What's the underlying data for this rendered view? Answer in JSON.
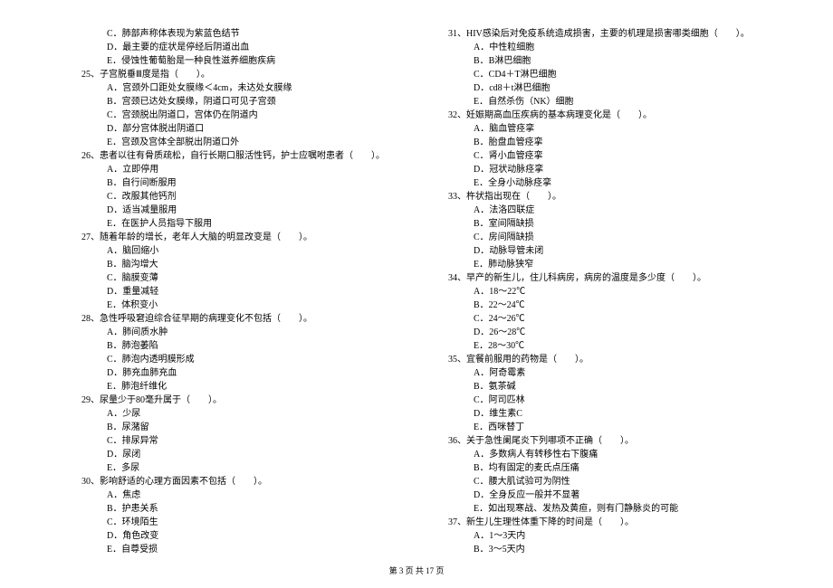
{
  "left": [
    {
      "type": "option",
      "text": "C．肺部声称体表现为紫蓝色结节"
    },
    {
      "type": "option",
      "text": "D．最主要的症状是停经后阴道出血"
    },
    {
      "type": "option",
      "text": "E．侵蚀性葡萄胎是一种良性滋养细胞疾病"
    },
    {
      "type": "question",
      "text": "25、子宫脱垂Ⅲ度是指（　　）。"
    },
    {
      "type": "option",
      "text": "A．宫颈外口距处女膜缘＜4cm，未达处女膜缘"
    },
    {
      "type": "option",
      "text": "B．宫颈已达处女膜缘，阴道口可见子宫颈"
    },
    {
      "type": "option",
      "text": "C．宫颈脱出阴道口，宫体仍在阴道内"
    },
    {
      "type": "option",
      "text": "D．部分宫体脱出阴道口"
    },
    {
      "type": "option",
      "text": "E．宫颈及宫体全部脱出阴道口外"
    },
    {
      "type": "question",
      "text": "26、患者以往有骨质疏松，自行长期口服活性钙，护士应嘱咐患者（　　）。"
    },
    {
      "type": "option",
      "text": "A．立即停用"
    },
    {
      "type": "option",
      "text": "B．自行间断服用"
    },
    {
      "type": "option",
      "text": "C．改服其他钙剂"
    },
    {
      "type": "option",
      "text": "D．适当减量服用"
    },
    {
      "type": "option",
      "text": "E．在医护人员指导下服用"
    },
    {
      "type": "question",
      "text": "27、随着年龄的增长，老年人大脑的明显改变是（　　）。"
    },
    {
      "type": "option",
      "text": "A．脑回缩小"
    },
    {
      "type": "option",
      "text": "B．脑沟增大"
    },
    {
      "type": "option",
      "text": "C．脑膜变薄"
    },
    {
      "type": "option",
      "text": "D．重量减轻"
    },
    {
      "type": "option",
      "text": "E．体积变小"
    },
    {
      "type": "question",
      "text": "28、急性呼吸窘迫综合征早期的病理变化不包括（　　）。"
    },
    {
      "type": "option",
      "text": "A．肺间质水肿"
    },
    {
      "type": "option",
      "text": "B．肺泡萎陷"
    },
    {
      "type": "option",
      "text": "C．肺泡内透明膜形成"
    },
    {
      "type": "option",
      "text": "D．肺充血肺充血"
    },
    {
      "type": "option",
      "text": "E．肺泡纤维化"
    },
    {
      "type": "question",
      "text": "29、尿量少于80毫升属于（　　）。"
    },
    {
      "type": "option",
      "text": "A．少尿"
    },
    {
      "type": "option",
      "text": "B．尿潴留"
    },
    {
      "type": "option",
      "text": "C．排尿异常"
    },
    {
      "type": "option",
      "text": "D．尿闭"
    },
    {
      "type": "option",
      "text": "E．多尿"
    },
    {
      "type": "question",
      "text": "30、影响舒适的心理方面因素不包括（　　）。"
    },
    {
      "type": "option",
      "text": "A．焦虑"
    },
    {
      "type": "option",
      "text": "B．护患关系"
    },
    {
      "type": "option",
      "text": "C．环境陌生"
    },
    {
      "type": "option",
      "text": "D．角色改变"
    },
    {
      "type": "option",
      "text": "E．自尊受损"
    }
  ],
  "right": [
    {
      "type": "question",
      "text": "31、HIV感染后对免疫系统造成损害，主要的机理是损害哪类细胞（　　）。"
    },
    {
      "type": "option",
      "text": "A．中性粒细胞"
    },
    {
      "type": "option",
      "text": "B．B淋巴细胞"
    },
    {
      "type": "option",
      "text": "C．CD4＋T淋巴细胞"
    },
    {
      "type": "option",
      "text": "D．cd8＋t淋巴细胞"
    },
    {
      "type": "option",
      "text": "E．自然杀伤（NK）细胞"
    },
    {
      "type": "question",
      "text": "32、妊娠期高血压疾病的基本病理变化是（　　）。"
    },
    {
      "type": "option",
      "text": "A．脑血管痉挛"
    },
    {
      "type": "option",
      "text": "B．胎盘血管痉挛"
    },
    {
      "type": "option",
      "text": "C．肾小血管痉挛"
    },
    {
      "type": "option",
      "text": "D．冠状动脉痉挛"
    },
    {
      "type": "option",
      "text": "E．全身小动脉痉挛"
    },
    {
      "type": "question",
      "text": "33、杵状指出现在（　　）。"
    },
    {
      "type": "option",
      "text": "A．法洛四联症"
    },
    {
      "type": "option",
      "text": "B．室间隔缺损"
    },
    {
      "type": "option",
      "text": "C．房间隔缺损"
    },
    {
      "type": "option",
      "text": "D．动脉导管未闭"
    },
    {
      "type": "option",
      "text": "E．肺动脉狭窄"
    },
    {
      "type": "question",
      "text": "34、早产的新生儿，住儿科病房，病房的温度是多少度（　　）。"
    },
    {
      "type": "option",
      "text": "A．18～22℃"
    },
    {
      "type": "option",
      "text": "B．22～24℃"
    },
    {
      "type": "option",
      "text": "C．24～26℃"
    },
    {
      "type": "option",
      "text": "D．26～28℃"
    },
    {
      "type": "option",
      "text": "E．28～30℃"
    },
    {
      "type": "question",
      "text": "35、宜餐前服用的药物是（　　）。"
    },
    {
      "type": "option",
      "text": "A．阿奇霉素"
    },
    {
      "type": "option",
      "text": "B．氨茶碱"
    },
    {
      "type": "option",
      "text": "C．阿司匹林"
    },
    {
      "type": "option",
      "text": "D．维生素C"
    },
    {
      "type": "option",
      "text": "E．西咪替丁"
    },
    {
      "type": "question",
      "text": "36、关于急性阑尾炎下列哪项不正确（　　）。"
    },
    {
      "type": "option",
      "text": "A．多数病人有转移性右下腹痛"
    },
    {
      "type": "option",
      "text": "B．均有固定的麦氏点压痛"
    },
    {
      "type": "option",
      "text": "C．腰大肌试验可为阴性"
    },
    {
      "type": "option",
      "text": "D．全身反应一般并不显著"
    },
    {
      "type": "option",
      "text": "E．如出现寒战、发热及黄疸，则有门静脉炎的可能"
    },
    {
      "type": "question",
      "text": "37、新生儿生理性体重下降的时间是（　　）。"
    },
    {
      "type": "option",
      "text": "A．1～3天内"
    },
    {
      "type": "option",
      "text": "B．3～5天内"
    }
  ],
  "footer": "第 3 页 共 17 页"
}
